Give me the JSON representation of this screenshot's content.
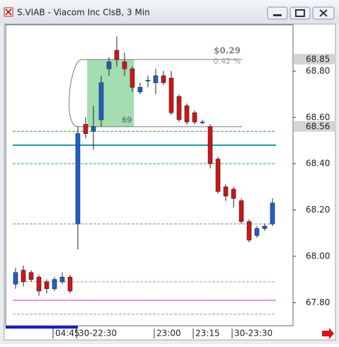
{
  "chart_data": {
    "type": "candlestick",
    "title": "S.VIAB - Viacom Inc ClsB, 3 Min",
    "categories": [
      null,
      null,
      null,
      null,
      null,
      "04:45",
      null,
      null,
      "30-22:30",
      null,
      null,
      null,
      null,
      null,
      null,
      null,
      null,
      null,
      "23:00",
      null,
      null,
      null,
      null,
      "23:15",
      null,
      null,
      null,
      null,
      "30-23:30",
      null,
      null,
      null,
      null,
      null
    ],
    "open": [
      67.88,
      67.94,
      67.93,
      67.91,
      67.89,
      67.86,
      67.89,
      67.91,
      68.14,
      68.57,
      68.54,
      68.59,
      68.81,
      68.89,
      68.84,
      68.81,
      68.71,
      68.76,
      68.75,
      68.78,
      68.77,
      68.69,
      68.65,
      68.62,
      68.58,
      68.56,
      68.42,
      68.3,
      68.29,
      68.24,
      68.15,
      68.09,
      68.12,
      68.14
    ],
    "high": [
      67.95,
      67.96,
      67.94,
      67.92,
      67.9,
      67.91,
      67.93,
      67.92,
      68.56,
      68.6,
      68.65,
      68.78,
      68.86,
      68.95,
      68.88,
      68.82,
      68.75,
      68.78,
      68.81,
      68.8,
      68.8,
      68.7,
      68.66,
      68.63,
      68.59,
      68.57,
      68.43,
      68.31,
      68.3,
      68.25,
      68.16,
      68.13,
      68.14,
      68.25
    ],
    "low": [
      67.86,
      67.87,
      67.89,
      67.83,
      67.84,
      67.85,
      67.88,
      67.84,
      68.03,
      68.51,
      68.46,
      68.56,
      68.78,
      68.82,
      68.78,
      68.71,
      68.7,
      68.73,
      68.7,
      68.74,
      68.61,
      68.58,
      68.57,
      68.57,
      68.57,
      68.38,
      68.27,
      68.24,
      68.21,
      68.14,
      68.06,
      68.08,
      68.11,
      68.13
    ],
    "close": [
      67.93,
      67.89,
      67.9,
      67.85,
      67.86,
      67.9,
      67.91,
      67.85,
      68.53,
      68.53,
      68.56,
      68.75,
      68.84,
      68.85,
      68.81,
      68.73,
      68.73,
      68.76,
      68.78,
      68.75,
      68.62,
      68.59,
      68.58,
      68.58,
      68.58,
      68.4,
      68.28,
      68.26,
      68.25,
      68.15,
      68.07,
      68.12,
      68.13,
      68.23
    ],
    "up_color": "#1e5fcc",
    "down_color": "#d01515",
    "ylim": [
      67.7,
      69.0
    ],
    "yticks": [
      {
        "value": 67.8,
        "label": "67.80"
      },
      {
        "value": 68.0,
        "label": "68.00"
      },
      {
        "value": 68.2,
        "label": "68.20"
      },
      {
        "value": 68.4,
        "label": "68.40"
      },
      {
        "value": 68.6,
        "label": "68.60"
      },
      {
        "value": 68.8,
        "label": "68.80"
      }
    ],
    "price_markers": [
      {
        "value": 68.85,
        "label": "68.85"
      },
      {
        "value": 68.56,
        "label": "68.56"
      }
    ],
    "reference_lines": [
      {
        "value": 68.54,
        "color": "#33aa33",
        "dashed": true
      },
      {
        "value": 68.48,
        "color": "#1a9fb5",
        "dashed": false
      },
      {
        "value": 68.4,
        "color": "#33aa33",
        "dashed": true
      },
      {
        "value": 68.14,
        "color": "#888888",
        "dashed": true
      },
      {
        "value": 67.89,
        "color": "#d080d0",
        "dashed": true
      },
      {
        "value": 67.81,
        "color": "#f090e0",
        "dashed": false
      },
      {
        "value": 67.75,
        "color": "#d080d0",
        "dashed": true
      }
    ],
    "measure": {
      "from": 68.56,
      "to": 68.85,
      "change_label": "$0.29",
      "pct_label": "0.42 %",
      "count_label": "69"
    }
  }
}
